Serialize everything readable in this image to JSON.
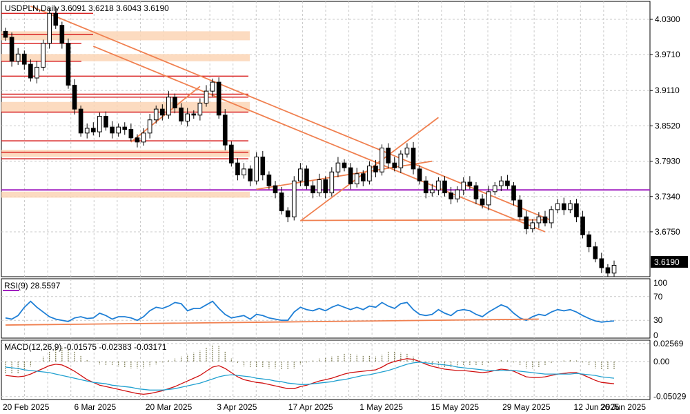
{
  "header": {
    "symbol": "USDPLN,Daily",
    "ohlc": "3.6091 3.6218 3.6043 3.6190"
  },
  "rsi_panel": {
    "label": "RSI(9) 28.5597"
  },
  "macd_panel": {
    "label": "MACD(12,26,9) -0.01575 -0.02383 -0.03171"
  },
  "colors": {
    "rsi_line": "#1e7fd6",
    "rsi_trend": "#f08050",
    "macd_line": "#d01010",
    "signal_line": "#20a0d0",
    "histogram": "#7a7a50",
    "resistance": "#d82020",
    "trendline": "#f08050",
    "zone": "#fbd5b5",
    "pivot_line": "#a020c0",
    "grid": "#c8c8c8",
    "current_price_box": "#000000"
  },
  "chart_data": [
    {
      "type": "candlestick",
      "title": "USDPLN,Daily",
      "ylim": [
        3.6,
        4.06
      ],
      "price_ticks": [
        "4.0300",
        "3.9710",
        "3.9110",
        "3.8520",
        "3.7930",
        "3.7340",
        "3.6750"
      ],
      "current_price": "3.6190",
      "x_ticks": [
        "20 Feb 2025",
        "6 Mar 2025",
        "20 Mar 2025",
        "3 Apr 2025",
        "17 Apr 2025",
        "1 May 2025",
        "15 May 2025",
        "29 May 2025",
        "12 Jun 2025",
        "26 Jun 2025"
      ],
      "grid": true,
      "closes": [
        4.0,
        3.96,
        3.972,
        3.955,
        3.932,
        3.95,
        3.99,
        4.04,
        4.02,
        3.99,
        3.92,
        3.88,
        3.84,
        3.848,
        3.842,
        3.868,
        3.85,
        3.84,
        3.85,
        3.846,
        3.832,
        3.825,
        3.84,
        3.862,
        3.88,
        3.87,
        3.9,
        3.882,
        3.86,
        3.872,
        3.87,
        3.89,
        3.91,
        3.925,
        3.87,
        3.82,
        3.79,
        3.77,
        3.78,
        3.76,
        3.8,
        3.77,
        3.752,
        3.74,
        3.71,
        3.7,
        3.76,
        3.78,
        3.752,
        3.74,
        3.762,
        3.74,
        3.775,
        3.79,
        3.782,
        3.755,
        3.772,
        3.76,
        3.785,
        3.775,
        3.815,
        3.79,
        3.782,
        3.805,
        3.815,
        3.78,
        3.76,
        3.74,
        3.745,
        3.76,
        3.74,
        3.73,
        3.745,
        3.758,
        3.752,
        3.73,
        3.72,
        3.742,
        3.752,
        3.76,
        3.752,
        3.728,
        3.7,
        3.68,
        3.69,
        3.7,
        3.69,
        3.712,
        3.722,
        3.712,
        3.722,
        3.7,
        3.67,
        3.65,
        3.63,
        3.615,
        3.606,
        3.619
      ],
      "horizontal_levels": [
        4.04,
        4.005,
        3.99,
        3.96,
        3.935,
        3.905,
        3.9,
        3.875,
        3.827,
        3.808,
        3.797,
        3.745
      ],
      "zones": [
        [
          3.995,
          4.01
        ],
        [
          3.96,
          3.972
        ],
        [
          3.875,
          3.892
        ],
        [
          3.8,
          3.812
        ],
        [
          3.732,
          3.742
        ]
      ]
    },
    {
      "type": "line",
      "title": "RSI(9)",
      "ylim": [
        0,
        100
      ],
      "y_ticks": [
        "100",
        "70",
        "30",
        "0"
      ],
      "current_value": 28.5597,
      "values": [
        34,
        32,
        38,
        52,
        62,
        52,
        44,
        36,
        32,
        30,
        28,
        34,
        36,
        33,
        34,
        42,
        38,
        32,
        36,
        36,
        34,
        30,
        36,
        46,
        52,
        50,
        54,
        60,
        58,
        46,
        50,
        50,
        56,
        62,
        50,
        40,
        34,
        36,
        38,
        32,
        40,
        38,
        34,
        32,
        30,
        30,
        44,
        52,
        48,
        46,
        50,
        46,
        52,
        56,
        52,
        48,
        52,
        48,
        54,
        52,
        60,
        54,
        50,
        58,
        60,
        48,
        40,
        38,
        40,
        48,
        42,
        38,
        46,
        48,
        46,
        40,
        36,
        44,
        50,
        56,
        52,
        42,
        34,
        30,
        36,
        40,
        38,
        44,
        48,
        46,
        48,
        44,
        38,
        33,
        29,
        27,
        28,
        29
      ]
    },
    {
      "type": "bar+line",
      "title": "MACD(12,26,9)",
      "ylim": [
        -0.0545,
        0.0305
      ],
      "y_ticks": [
        "0.02569",
        "0.00",
        "-0.05029"
      ],
      "values_label": "-0.01575 -0.02383 -0.03171",
      "series": [
        {
          "name": "MACD",
          "values": [
            -0.02,
            -0.021,
            -0.022,
            -0.021,
            -0.018,
            -0.014,
            -0.01,
            -0.006,
            -0.004,
            -0.005,
            -0.009,
            -0.014,
            -0.02,
            -0.026,
            -0.03,
            -0.034,
            -0.036,
            -0.038,
            -0.04,
            -0.042,
            -0.044,
            -0.046,
            -0.047,
            -0.046,
            -0.044,
            -0.042,
            -0.039,
            -0.036,
            -0.032,
            -0.028,
            -0.024,
            -0.02,
            -0.014,
            -0.008,
            -0.006,
            -0.01,
            -0.016,
            -0.022,
            -0.026,
            -0.028,
            -0.03,
            -0.031,
            -0.033,
            -0.035,
            -0.037,
            -0.039,
            -0.039,
            -0.036,
            -0.034,
            -0.031,
            -0.028,
            -0.026,
            -0.024,
            -0.021,
            -0.018,
            -0.016,
            -0.015,
            -0.014,
            -0.013,
            -0.012,
            -0.008,
            -0.003,
            0.0,
            0.002,
            0.004,
            0.003,
            0.0,
            -0.004,
            -0.007,
            -0.009,
            -0.011,
            -0.012,
            -0.013,
            -0.013,
            -0.014,
            -0.015,
            -0.016,
            -0.015,
            -0.013,
            -0.011,
            -0.012,
            -0.014,
            -0.018,
            -0.022,
            -0.023,
            -0.023,
            -0.022,
            -0.02,
            -0.018,
            -0.017,
            -0.016,
            -0.016,
            -0.019,
            -0.023,
            -0.027,
            -0.03,
            -0.031,
            -0.032
          ]
        },
        {
          "name": "Signal",
          "values": [
            -0.008,
            -0.009,
            -0.01,
            -0.012,
            -0.013,
            -0.014,
            -0.015,
            -0.016,
            -0.018,
            -0.02,
            -0.022,
            -0.024,
            -0.026,
            -0.028,
            -0.03,
            -0.031,
            -0.032,
            -0.034,
            -0.035,
            -0.036,
            -0.037,
            -0.039,
            -0.04,
            -0.041,
            -0.041,
            -0.041,
            -0.04,
            -0.039,
            -0.037,
            -0.035,
            -0.033,
            -0.031,
            -0.028,
            -0.025,
            -0.022,
            -0.02,
            -0.019,
            -0.02,
            -0.021,
            -0.022,
            -0.024,
            -0.025,
            -0.026,
            -0.028,
            -0.029,
            -0.031,
            -0.032,
            -0.033,
            -0.033,
            -0.032,
            -0.031,
            -0.03,
            -0.029,
            -0.027,
            -0.026,
            -0.024,
            -0.022,
            -0.02,
            -0.019,
            -0.017,
            -0.015,
            -0.013,
            -0.01,
            -0.007,
            -0.004,
            -0.002,
            -0.001,
            -0.002,
            -0.003,
            -0.004,
            -0.005,
            -0.006,
            -0.008,
            -0.009,
            -0.01,
            -0.011,
            -0.012,
            -0.013,
            -0.013,
            -0.013,
            -0.013,
            -0.013,
            -0.014,
            -0.015,
            -0.016,
            -0.017,
            -0.018,
            -0.018,
            -0.018,
            -0.018,
            -0.018,
            -0.017,
            -0.018,
            -0.019,
            -0.02,
            -0.022,
            -0.023,
            -0.024
          ]
        }
      ]
    }
  ]
}
